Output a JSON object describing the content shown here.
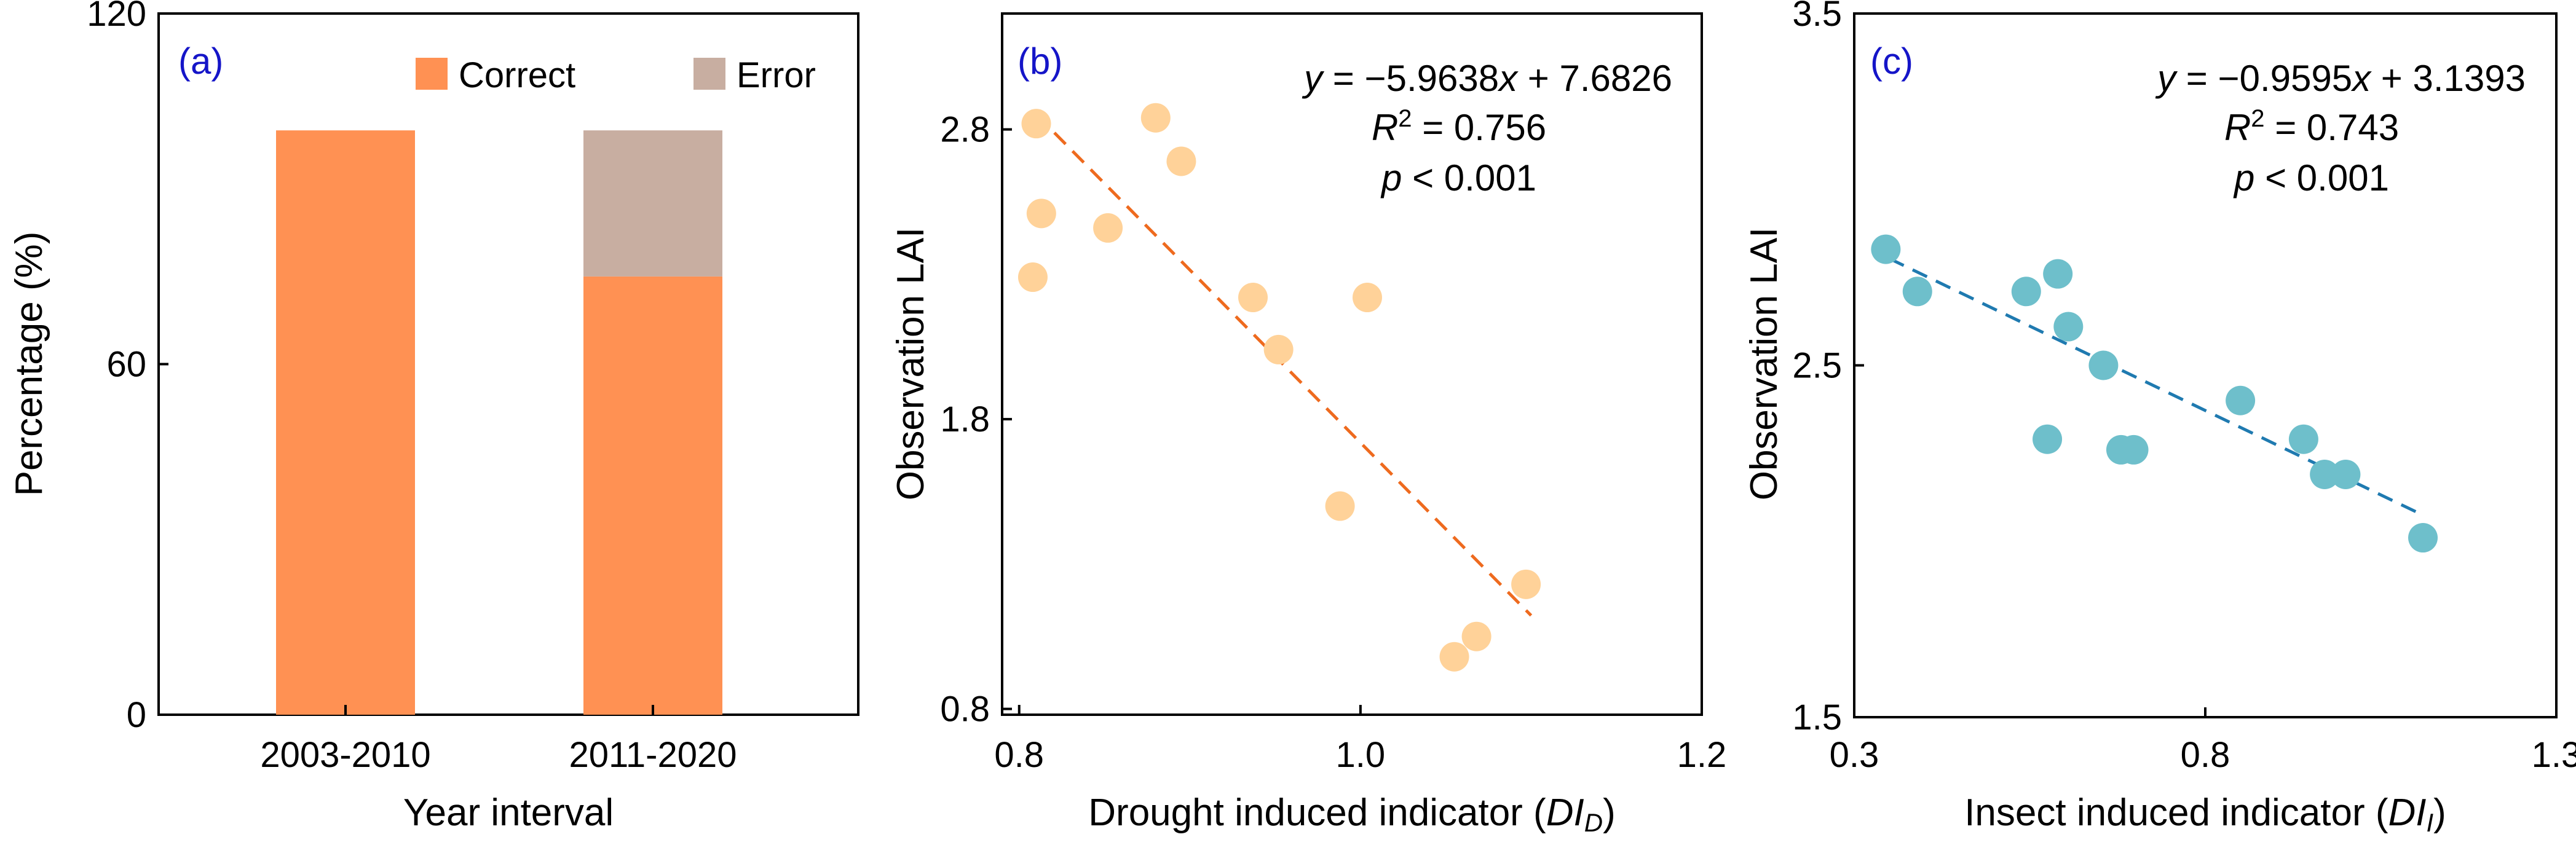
{
  "colors": {
    "correct": "#FF9153",
    "error": "#C8AEA1",
    "points_b": "#FFD299",
    "line_b": "#EE6A1E",
    "points_c": "#6EBFCB",
    "line_c": "#1F7AB0",
    "panel_label": "#1515C8"
  },
  "chart_data": [
    {
      "type": "bar",
      "stacked": true,
      "panel_label": "(a)",
      "categories": [
        "2003-2010",
        "2011-2020"
      ],
      "series": [
        {
          "name": "Correct",
          "values": [
            100,
            75
          ]
        },
        {
          "name": "Error",
          "values": [
            0,
            25
          ]
        }
      ],
      "xlabel": "Year interval",
      "ylabel": "Percentage (%)",
      "ylim": [
        0,
        120
      ],
      "yticks": [
        0,
        60,
        120
      ],
      "ytick_labels": [
        "0",
        "60",
        "120"
      ],
      "legend": [
        "Correct",
        "Error"
      ],
      "legend_position": "top-right"
    },
    {
      "type": "scatter",
      "panel_label": "(b)",
      "xlabel_main": "Drought induced indicator (",
      "xlabel_italic": "DI",
      "xlabel_sub": "D",
      "xlabel_close": ")",
      "ylabel": "Observation LAI",
      "xlim": [
        0.79,
        1.2
      ],
      "ylim": [
        0.78,
        3.2
      ],
      "xticks": [
        0.8,
        1.0,
        1.2
      ],
      "xtick_labels": [
        "0.8",
        "1.0",
        "1.2"
      ],
      "yticks": [
        0.8,
        1.8,
        2.8
      ],
      "ytick_labels": [
        "0.8",
        "1.8",
        "2.8"
      ],
      "points": [
        [
          0.81,
          2.82
        ],
        [
          0.88,
          2.84
        ],
        [
          0.895,
          2.69
        ],
        [
          0.813,
          2.51
        ],
        [
          0.852,
          2.46
        ],
        [
          0.808,
          2.29
        ],
        [
          0.937,
          2.22
        ],
        [
          1.004,
          2.22
        ],
        [
          0.952,
          2.04
        ],
        [
          0.988,
          1.5
        ],
        [
          1.097,
          1.23
        ],
        [
          1.068,
          1.05
        ],
        [
          1.055,
          0.98
        ]
      ],
      "fit": {
        "slope": -5.9638,
        "intercept": 7.6826,
        "x_range": [
          0.81,
          1.1
        ]
      },
      "annotation": {
        "equation": "−5.9638x + 7.6826",
        "eq_y": "y",
        "eq_equals": " = ",
        "eq_x": "x",
        "eq_rest": " + 7.6826",
        "eq_coef": "−5.9638",
        "r2_label": "R",
        "r2_sup": "2",
        "r2_value": " = 0.756",
        "p_label": "p",
        "p_value": " < 0.001"
      }
    },
    {
      "type": "scatter",
      "panel_label": "(c)",
      "xlabel_main": "Insect induced indicator (",
      "xlabel_italic": "DI",
      "xlabel_sub": "I",
      "xlabel_close": ")",
      "ylabel": "Observation LAI",
      "xlim": [
        0.3,
        1.3
      ],
      "ylim": [
        1.5,
        3.5
      ],
      "xticks": [
        0.3,
        0.8,
        1.3
      ],
      "xtick_labels": [
        "0.3",
        "0.8",
        "1.3"
      ],
      "yticks": [
        1.5,
        2.5,
        3.5
      ],
      "ytick_labels": [
        "1.5",
        "2.5",
        "3.5"
      ],
      "points": [
        [
          0.345,
          2.83
        ],
        [
          0.39,
          2.71
        ],
        [
          0.545,
          2.71
        ],
        [
          0.59,
          2.76
        ],
        [
          0.605,
          2.61
        ],
        [
          0.655,
          2.5
        ],
        [
          0.575,
          2.29
        ],
        [
          0.68,
          2.26
        ],
        [
          0.698,
          2.26
        ],
        [
          0.85,
          2.4
        ],
        [
          0.94,
          2.29
        ],
        [
          0.97,
          2.19
        ],
        [
          1.0,
          2.19
        ],
        [
          1.11,
          2.01
        ]
      ],
      "fit": {
        "slope": -0.9595,
        "intercept": 3.1393,
        "x_range": [
          0.35,
          1.11
        ]
      },
      "annotation": {
        "eq_y": "y",
        "eq_equals": " = ",
        "eq_coef": "−0.9595",
        "eq_x": "x",
        "eq_rest": " + 3.1393",
        "r2_label": "R",
        "r2_sup": "2",
        "r2_value": " = 0.743",
        "p_label": "p",
        "p_value": " < 0.001"
      }
    }
  ]
}
